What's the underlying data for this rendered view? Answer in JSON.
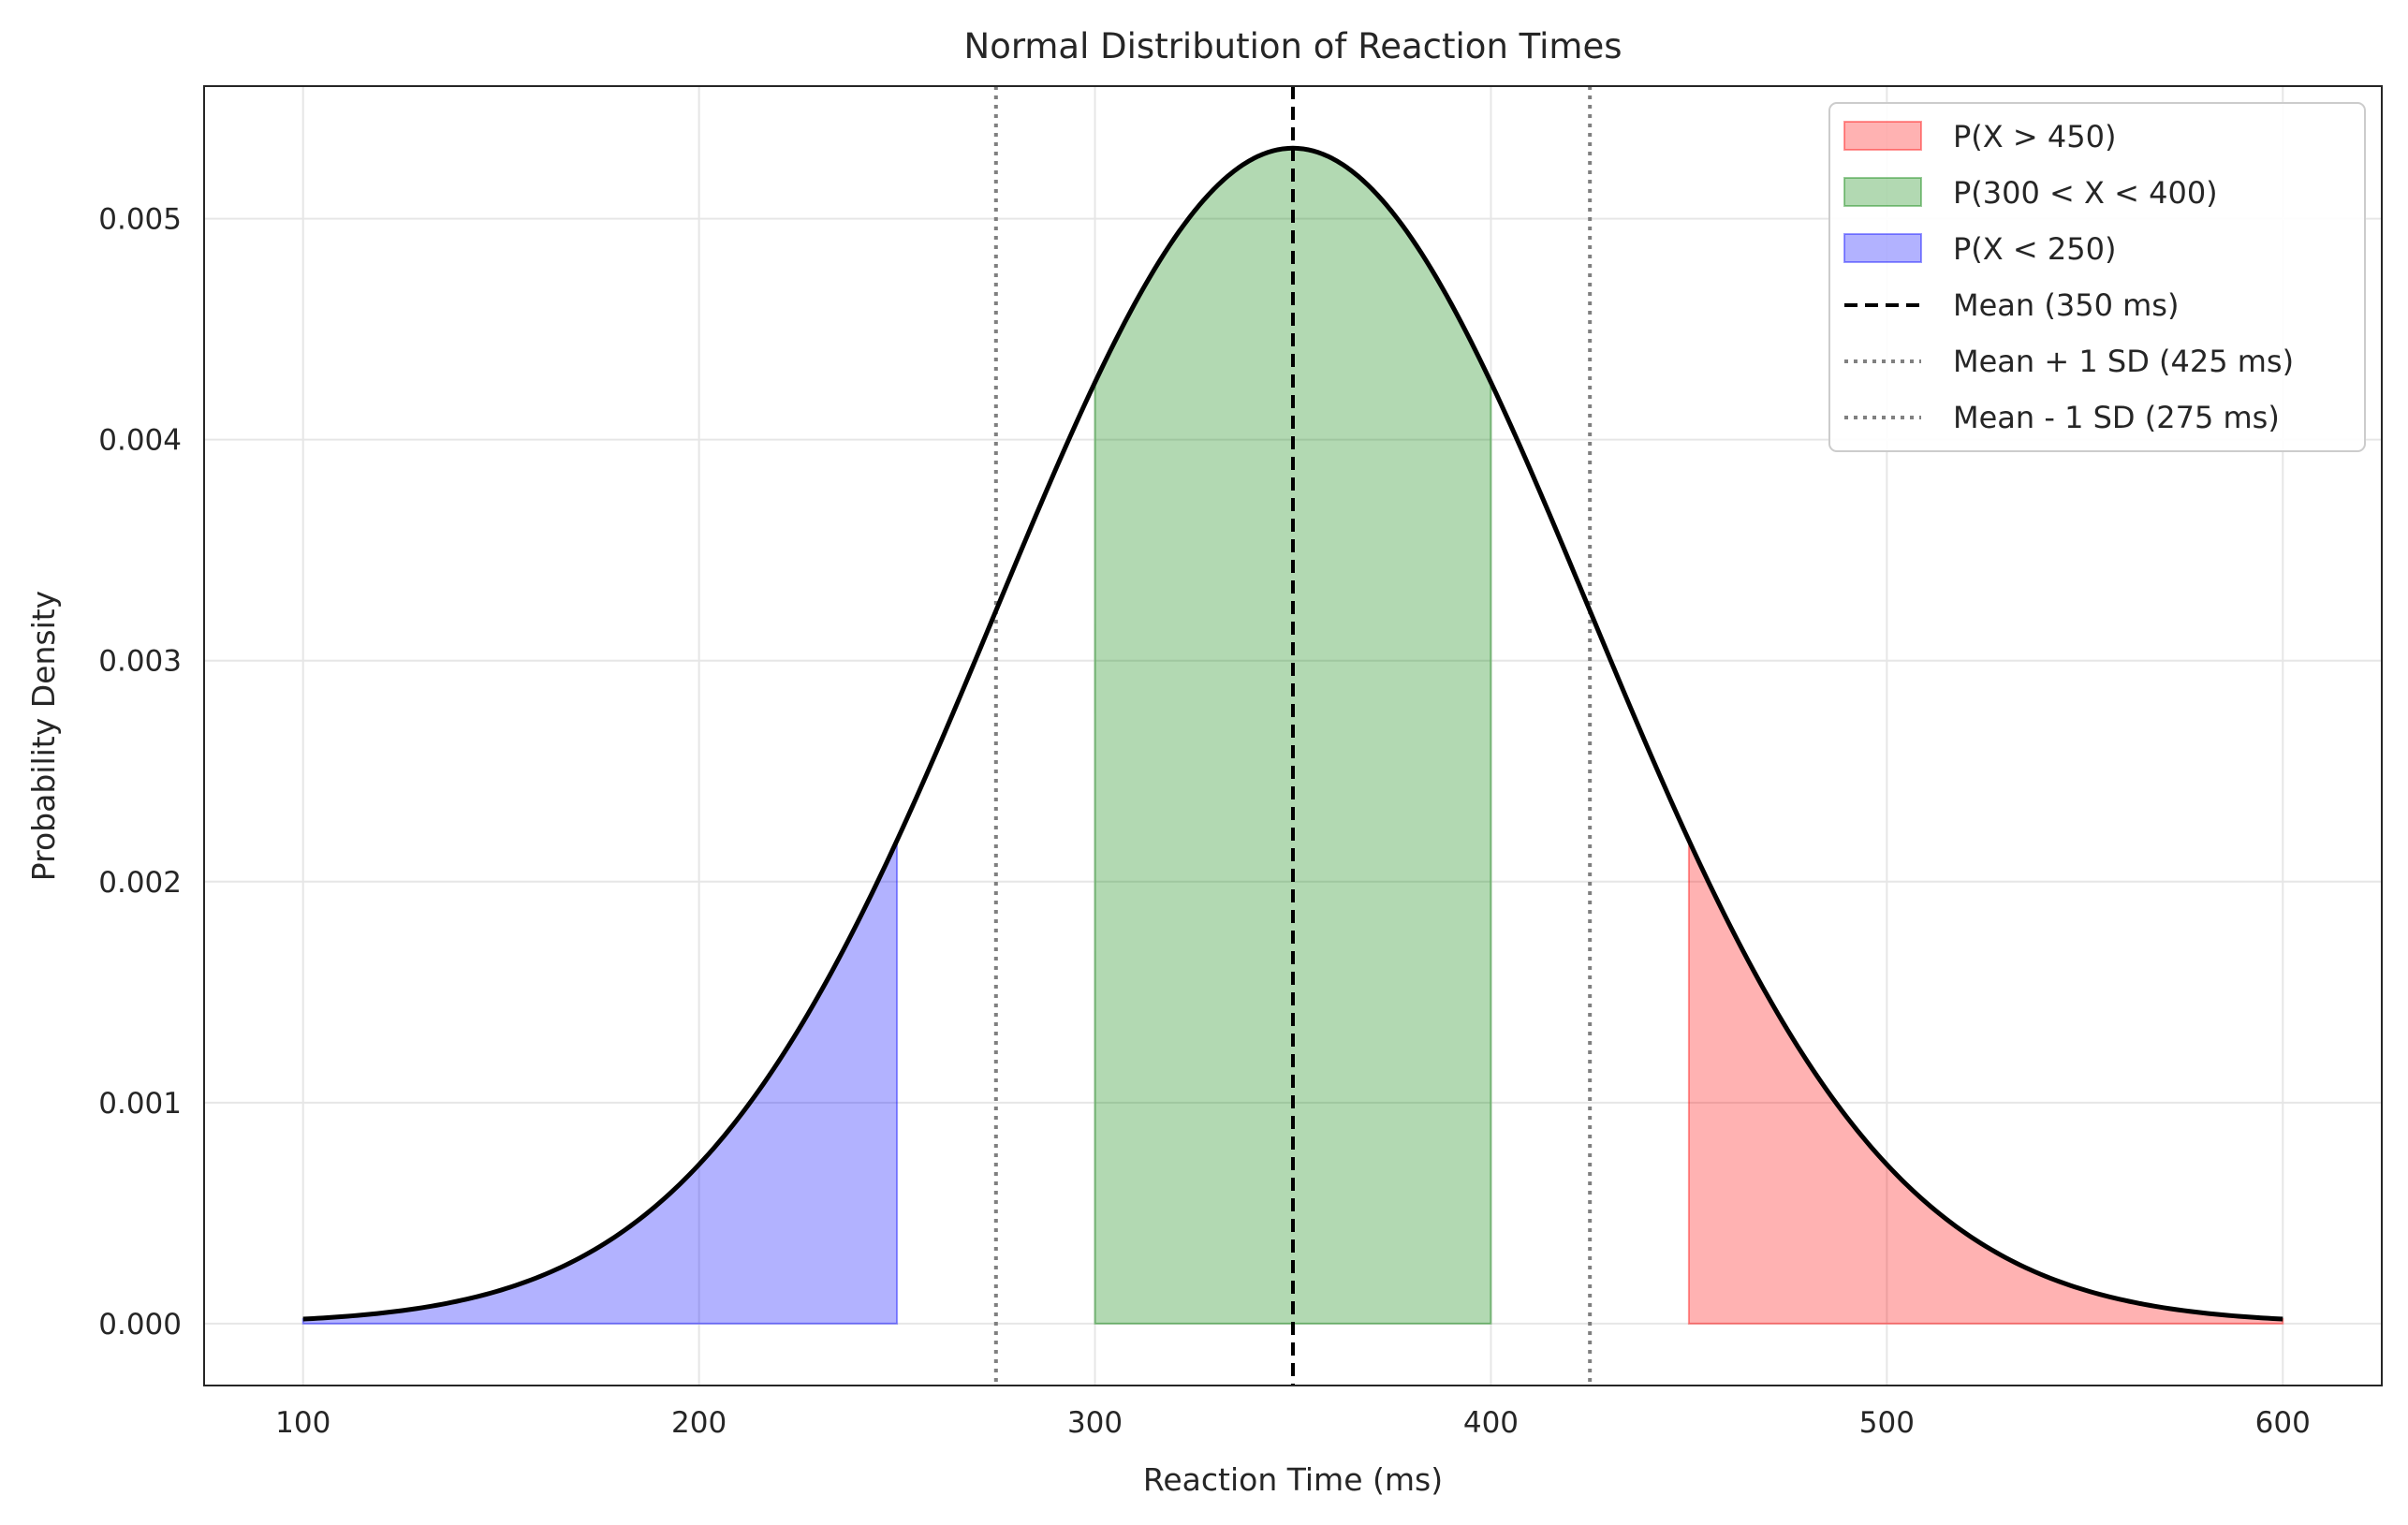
{
  "chart_data": {
    "type": "line",
    "title": "Normal Distribution of Reaction Times",
    "xlabel": "Reaction Time (ms)",
    "ylabel": "Probability Density",
    "xlim": [
      75,
      625
    ],
    "ylim": [
      -0.00028,
      0.0056
    ],
    "xticks": [
      100,
      200,
      300,
      400,
      500,
      600
    ],
    "xtick_labels": [
      "100",
      "200",
      "300",
      "400",
      "500",
      "600"
    ],
    "yticks": [
      0,
      0.001,
      0.002,
      0.003,
      0.004,
      0.005
    ],
    "ytick_labels": [
      "0.000",
      "0.001",
      "0.002",
      "0.003",
      "0.004",
      "0.005"
    ],
    "grid": true,
    "legend_position": "top-right",
    "distribution": {
      "name": "",
      "mean": 350,
      "sd": 75,
      "x_range": [
        100,
        600
      ],
      "color": "#000000"
    },
    "shaded_regions": [
      {
        "label": "P(X > 450)",
        "from": 450,
        "to": 600,
        "color": "#ff0000"
      },
      {
        "label": "P(300 < X < 400)",
        "from": 300,
        "to": 400,
        "color": "#008000"
      },
      {
        "label": "P(X < 250)",
        "from": 100,
        "to": 250,
        "color": "#0000ff"
      }
    ],
    "reference_lines": [
      {
        "label": "Mean (350 ms)",
        "x": 350,
        "style": "dashed",
        "color": "#000000"
      },
      {
        "label": "Mean + 1 SD (425 ms)",
        "x": 425,
        "style": "dotted",
        "color": "#808080"
      },
      {
        "label": "Mean - 1 SD (275 ms)",
        "x": 275,
        "style": "dotted",
        "color": "#808080"
      }
    ]
  }
}
